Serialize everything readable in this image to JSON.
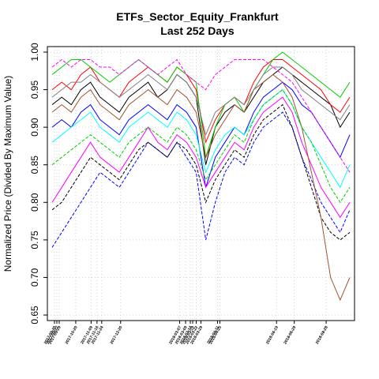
{
  "chart_data": {
    "type": "line",
    "title": "ETFs_Sector_Equity_Frankfurt",
    "subtitle": "Last 252 Days",
    "xlabel": "",
    "ylabel": "Normalized Price (Divided By Maximum Value)",
    "ylim": [
      0.65,
      1.0
    ],
    "yticks": [
      "0.65",
      "0.70",
      "0.75",
      "0.80",
      "0.85",
      "0.90",
      "0.95",
      "1.00"
    ],
    "x_range": [
      0,
      252
    ],
    "xtick_labels": [
      {
        "x": 2,
        "label": "2017-09-20"
      },
      {
        "x": 4,
        "label": "2017-09-27"
      },
      {
        "x": 6,
        "label": "2017-09-29"
      },
      {
        "x": 20,
        "label": "2017-10-20"
      },
      {
        "x": 33,
        "label": "2017-11-09"
      },
      {
        "x": 38,
        "label": "2017-11-16"
      },
      {
        "x": 42,
        "label": "2017-11-24"
      },
      {
        "x": 58,
        "label": "2017-12-20"
      },
      {
        "x": 108,
        "label": "2018-03-07"
      },
      {
        "x": 113,
        "label": "2018-03-09"
      },
      {
        "x": 117,
        "label": "2018-03-14"
      },
      {
        "x": 119,
        "label": "2018-03-19"
      },
      {
        "x": 122,
        "label": "2018-03-22"
      },
      {
        "x": 126,
        "label": "2018-03-29"
      },
      {
        "x": 140,
        "label": "2018-04-11"
      },
      {
        "x": 142,
        "label": "2018-04-25"
      },
      {
        "x": 190,
        "label": "2018-06-19"
      },
      {
        "x": 205,
        "label": "2018-06-29"
      },
      {
        "x": 232,
        "label": "2018-08-28"
      }
    ],
    "grid": true,
    "legend": "none",
    "series": [
      {
        "color": "#000000",
        "style": "solid",
        "values": [
          0.93,
          0.94,
          0.93,
          0.95,
          0.96,
          0.94,
          0.93,
          0.92,
          0.94,
          0.95,
          0.96,
          0.94,
          0.95,
          0.97,
          0.96,
          0.94,
          0.85,
          0.9,
          0.92,
          0.93,
          0.92,
          0.94,
          0.96,
          0.97,
          0.98,
          0.97,
          0.96,
          0.95,
          0.94,
          0.93,
          0.9,
          0.92
        ]
      },
      {
        "color": "#ff0000",
        "style": "solid",
        "values": [
          0.95,
          0.96,
          0.95,
          0.97,
          0.98,
          0.96,
          0.95,
          0.94,
          0.96,
          0.97,
          0.98,
          0.97,
          0.96,
          0.98,
          0.97,
          0.95,
          0.88,
          0.91,
          0.93,
          0.94,
          0.93,
          0.96,
          0.98,
          0.99,
          0.99,
          0.98,
          0.97,
          0.96,
          0.95,
          0.93,
          0.92,
          0.94
        ]
      },
      {
        "color": "#00cd00",
        "style": "solid",
        "values": [
          0.97,
          0.98,
          0.99,
          0.99,
          0.98,
          0.97,
          0.96,
          0.97,
          0.98,
          0.99,
          0.98,
          0.97,
          0.96,
          0.98,
          0.97,
          0.96,
          0.86,
          0.9,
          0.93,
          0.94,
          0.92,
          0.95,
          0.97,
          0.99,
          1.0,
          0.99,
          0.98,
          0.97,
          0.96,
          0.95,
          0.94,
          0.96
        ]
      },
      {
        "color": "#0000ff",
        "style": "solid",
        "values": [
          0.9,
          0.91,
          0.9,
          0.92,
          0.93,
          0.91,
          0.9,
          0.89,
          0.91,
          0.92,
          0.93,
          0.92,
          0.91,
          0.93,
          0.92,
          0.9,
          0.82,
          0.86,
          0.88,
          0.9,
          0.89,
          0.92,
          0.94,
          0.95,
          0.96,
          0.95,
          0.93,
          0.92,
          0.9,
          0.88,
          0.86,
          0.89
        ]
      },
      {
        "color": "#00ffff",
        "style": "solid",
        "values": [
          0.88,
          0.89,
          0.9,
          0.91,
          0.92,
          0.9,
          0.89,
          0.88,
          0.9,
          0.91,
          0.92,
          0.91,
          0.9,
          0.92,
          0.91,
          0.89,
          0.84,
          0.87,
          0.89,
          0.9,
          0.89,
          0.91,
          0.93,
          0.94,
          0.95,
          0.93,
          0.9,
          0.88,
          0.86,
          0.84,
          0.82,
          0.85
        ]
      },
      {
        "color": "#ff00ff",
        "style": "solid",
        "values": [
          0.8,
          0.82,
          0.84,
          0.86,
          0.88,
          0.86,
          0.85,
          0.84,
          0.86,
          0.88,
          0.9,
          0.88,
          0.87,
          0.89,
          0.88,
          0.86,
          0.82,
          0.84,
          0.86,
          0.88,
          0.87,
          0.9,
          0.92,
          0.93,
          0.94,
          0.92,
          0.88,
          0.85,
          0.82,
          0.8,
          0.78,
          0.8
        ]
      },
      {
        "color": "#ff00ff",
        "style": "dashed",
        "values": [
          0.98,
          0.99,
          0.98,
          0.99,
          0.99,
          0.98,
          0.98,
          0.97,
          0.98,
          0.99,
          0.98,
          0.97,
          0.98,
          0.99,
          0.97,
          0.96,
          0.95,
          0.97,
          0.98,
          0.99,
          0.99,
          0.99,
          0.99,
          0.98,
          0.97,
          0.96,
          0.94,
          0.92,
          0.9,
          0.88,
          0.86,
          0.84
        ]
      },
      {
        "color": "#0000ff",
        "style": "dashed",
        "values": [
          0.74,
          0.76,
          0.78,
          0.8,
          0.82,
          0.84,
          0.83,
          0.82,
          0.84,
          0.86,
          0.88,
          0.87,
          0.86,
          0.88,
          0.86,
          0.84,
          0.75,
          0.8,
          0.84,
          0.86,
          0.85,
          0.88,
          0.9,
          0.91,
          0.92,
          0.9,
          0.86,
          0.83,
          0.8,
          0.78,
          0.76,
          0.79
        ]
      },
      {
        "color": "#000000",
        "style": "dashed",
        "values": [
          0.79,
          0.8,
          0.82,
          0.84,
          0.86,
          0.85,
          0.84,
          0.83,
          0.85,
          0.87,
          0.88,
          0.87,
          0.86,
          0.88,
          0.87,
          0.85,
          0.8,
          0.83,
          0.85,
          0.87,
          0.86,
          0.89,
          0.91,
          0.92,
          0.93,
          0.9,
          0.86,
          0.82,
          0.78,
          0.76,
          0.75,
          0.76
        ]
      },
      {
        "color": "#a0522d",
        "style": "solid",
        "values": [
          0.92,
          0.93,
          0.92,
          0.94,
          0.95,
          0.93,
          0.92,
          0.91,
          0.93,
          0.94,
          0.95,
          0.94,
          0.93,
          0.95,
          0.94,
          0.92,
          0.86,
          0.89,
          0.91,
          0.93,
          0.92,
          0.95,
          0.96,
          0.97,
          0.96,
          0.94,
          0.9,
          0.84,
          0.78,
          0.7,
          0.67,
          0.7
        ]
      },
      {
        "color": "#00cd00",
        "style": "dashed",
        "values": [
          0.85,
          0.86,
          0.87,
          0.88,
          0.89,
          0.88,
          0.87,
          0.86,
          0.88,
          0.89,
          0.9,
          0.89,
          0.88,
          0.9,
          0.89,
          0.87,
          0.83,
          0.85,
          0.87,
          0.89,
          0.88,
          0.91,
          0.93,
          0.94,
          0.95,
          0.93,
          0.9,
          0.88,
          0.85,
          0.82,
          0.8,
          0.82
        ]
      },
      {
        "color": "#808080",
        "style": "solid",
        "values": [
          0.94,
          0.95,
          0.96,
          0.96,
          0.97,
          0.96,
          0.95,
          0.94,
          0.95,
          0.96,
          0.97,
          0.96,
          0.95,
          0.97,
          0.96,
          0.94,
          0.89,
          0.92,
          0.93,
          0.94,
          0.93,
          0.95,
          0.97,
          0.98,
          0.98,
          0.97,
          0.95,
          0.94,
          0.93,
          0.92,
          0.91,
          0.93
        ]
      }
    ]
  }
}
